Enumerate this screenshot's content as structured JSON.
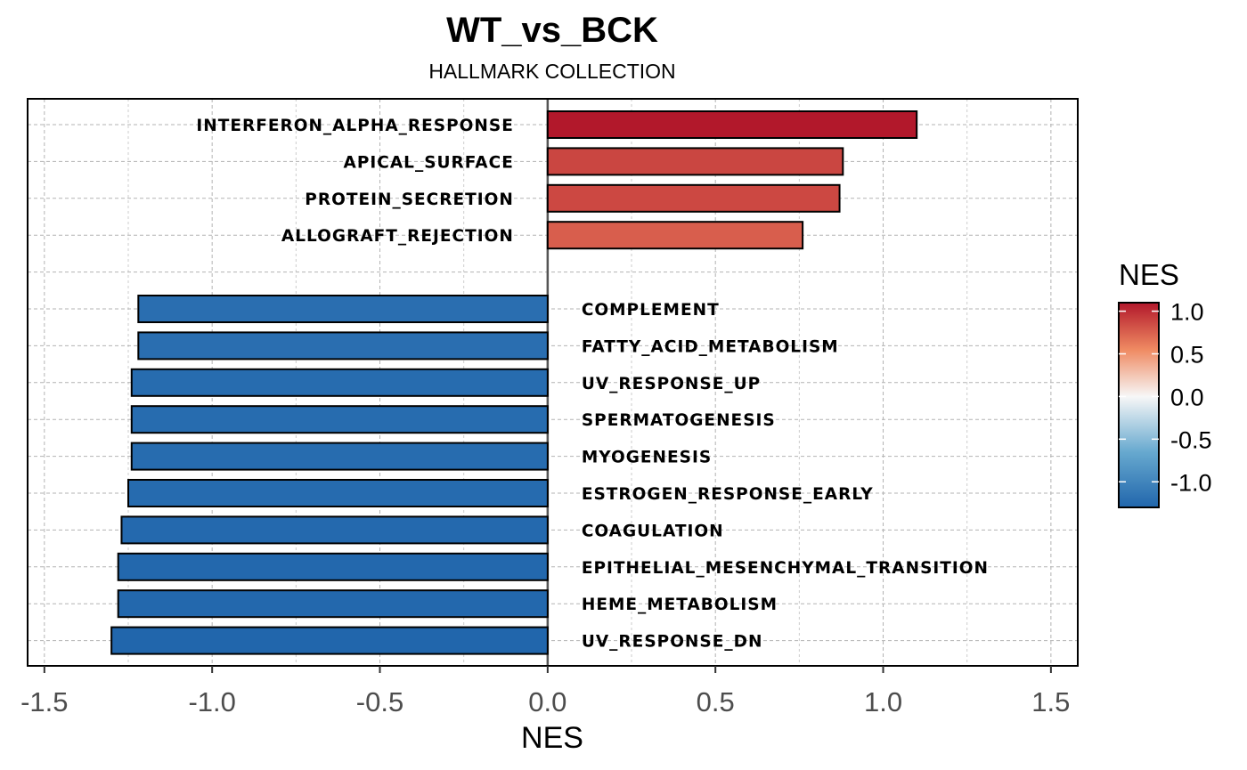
{
  "chart_data": {
    "type": "bar",
    "orientation": "horizontal",
    "title": "WT_vs_BCK",
    "subtitle": "HALLMARK COLLECTION",
    "xlabel": "NES",
    "ylabel": "",
    "xlim": [
      -1.55,
      1.58
    ],
    "xticks": [
      -1.5,
      -1.0,
      -0.5,
      0.0,
      0.5,
      1.0,
      1.5
    ],
    "xtick_labels": [
      "-1.5",
      "-1.0",
      "-0.5",
      "0.0",
      "0.5",
      "1.0",
      "1.5"
    ],
    "grid": true,
    "categories": [
      "INTERFERON_ALPHA_RESPONSE",
      "APICAL_SURFACE",
      "PROTEIN_SECRETION",
      "ALLOGRAFT_REJECTION",
      "",
      "COMPLEMENT",
      "FATTY_ACID_METABOLISM",
      "UV_RESPONSE_UP",
      "SPERMATOGENESIS",
      "MYOGENESIS",
      "ESTROGEN_RESPONSE_EARLY",
      "COAGULATION",
      "EPITHELIAL_MESENCHYMAL_TRANSITION",
      "HEME_METABOLISM",
      "UV_RESPONSE_DN"
    ],
    "values": [
      1.1,
      0.88,
      0.87,
      0.76,
      null,
      -1.22,
      -1.22,
      -1.24,
      -1.24,
      -1.24,
      -1.25,
      -1.27,
      -1.28,
      -1.28,
      -1.3
    ],
    "legend": {
      "title": "NES",
      "placement": "right",
      "ticks": [
        1.0,
        0.5,
        0.0,
        -0.5,
        -1.0
      ],
      "tick_labels": [
        "1.0",
        "0.5",
        "0.0",
        "-0.5",
        "-1.0"
      ],
      "range": [
        -1.3,
        1.1
      ],
      "colormap": [
        {
          "value": -1.3,
          "color": "#2166ac"
        },
        {
          "value": -0.65,
          "color": "#67a9cf"
        },
        {
          "value": 0.0,
          "color": "#f7f7f7"
        },
        {
          "value": 0.55,
          "color": "#ef8a62"
        },
        {
          "value": 1.1,
          "color": "#b2182b"
        }
      ]
    }
  }
}
